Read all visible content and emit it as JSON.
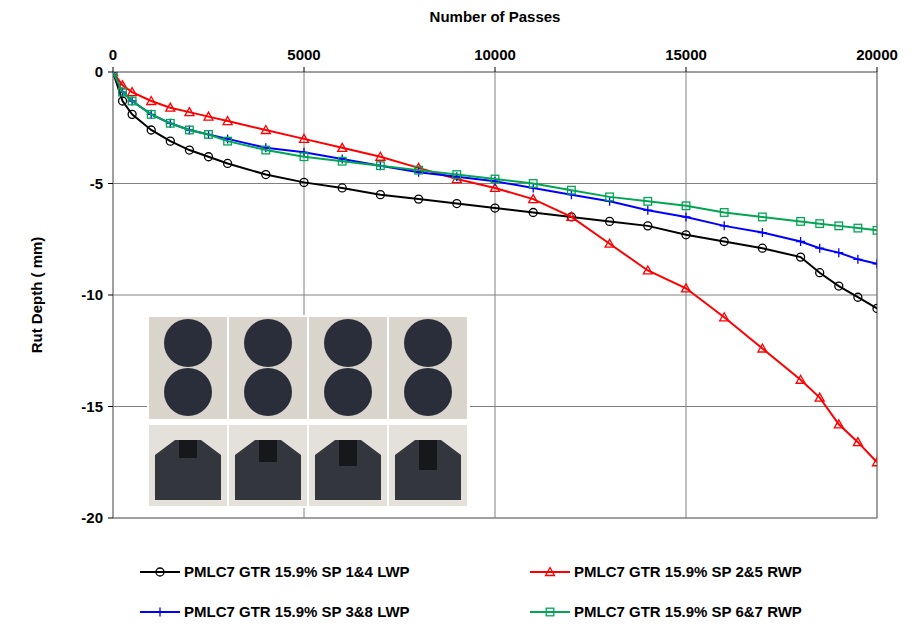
{
  "chart_data": {
    "type": "line",
    "x_label": "Number of Passes",
    "y_label": "Rut  Depth ( mm)",
    "x": [
      0,
      250,
      500,
      1000,
      1500,
      2000,
      2500,
      3000,
      4000,
      5000,
      6000,
      7000,
      8000,
      9000,
      10000,
      11000,
      12000,
      13000,
      14000,
      15000,
      16000,
      17000,
      18000,
      18500,
      19000,
      19500,
      20000
    ],
    "series": [
      {
        "name": "PMLC7 GTR 15.9% SP 1&4 LWP",
        "color": "#000000",
        "marker": "circle",
        "values": [
          0,
          -1.3,
          -1.9,
          -2.6,
          -3.1,
          -3.5,
          -3.8,
          -4.1,
          -4.6,
          -4.95,
          -5.2,
          -5.5,
          -5.7,
          -5.9,
          -6.1,
          -6.3,
          -6.5,
          -6.7,
          -6.9,
          -7.3,
          -7.6,
          -7.9,
          -8.3,
          -9.0,
          -9.6,
          -10.1,
          -10.6
        ]
      },
      {
        "name": "PMLC7 GTR 15.9% SP 2&5 RWP",
        "color": "#ff0000",
        "marker": "triangle",
        "values": [
          0,
          -0.6,
          -0.9,
          -1.3,
          -1.6,
          -1.8,
          -2.0,
          -2.2,
          -2.6,
          -3.0,
          -3.4,
          -3.8,
          -4.3,
          -4.8,
          -5.2,
          -5.7,
          -6.5,
          -7.7,
          -8.9,
          -9.7,
          -11.0,
          -12.4,
          -13.8,
          -14.6,
          -15.8,
          -16.6,
          -17.5
        ]
      },
      {
        "name": "PMLC7 GTR 15.9% SP 3&8 LWP",
        "color": "#0000ff",
        "marker": "plus",
        "values": [
          0,
          -0.9,
          -1.3,
          -1.9,
          -2.3,
          -2.6,
          -2.8,
          -3.0,
          -3.4,
          -3.6,
          -3.9,
          -4.2,
          -4.5,
          -4.7,
          -4.9,
          -5.2,
          -5.5,
          -5.8,
          -6.2,
          -6.5,
          -6.9,
          -7.2,
          -7.6,
          -7.9,
          -8.1,
          -8.4,
          -8.6
        ]
      },
      {
        "name": "PMLC7 GTR 15.9% SP 6&7 RWP",
        "color": "#00a651",
        "marker": "square",
        "values": [
          0,
          -0.9,
          -1.3,
          -1.9,
          -2.3,
          -2.6,
          -2.8,
          -3.1,
          -3.5,
          -3.8,
          -4.0,
          -4.2,
          -4.4,
          -4.6,
          -4.8,
          -5.0,
          -5.3,
          -5.6,
          -5.8,
          -6.0,
          -6.3,
          -6.5,
          -6.7,
          -6.8,
          -6.9,
          -7.0,
          -7.1
        ]
      }
    ],
    "xlim": [
      0,
      20000
    ],
    "xticks": [
      0,
      5000,
      10000,
      15000,
      20000
    ],
    "ylim": [
      -20,
      0
    ],
    "yticks": [
      0,
      -5,
      -10,
      -15,
      -20
    ],
    "grid": true,
    "legend": "bottom"
  }
}
